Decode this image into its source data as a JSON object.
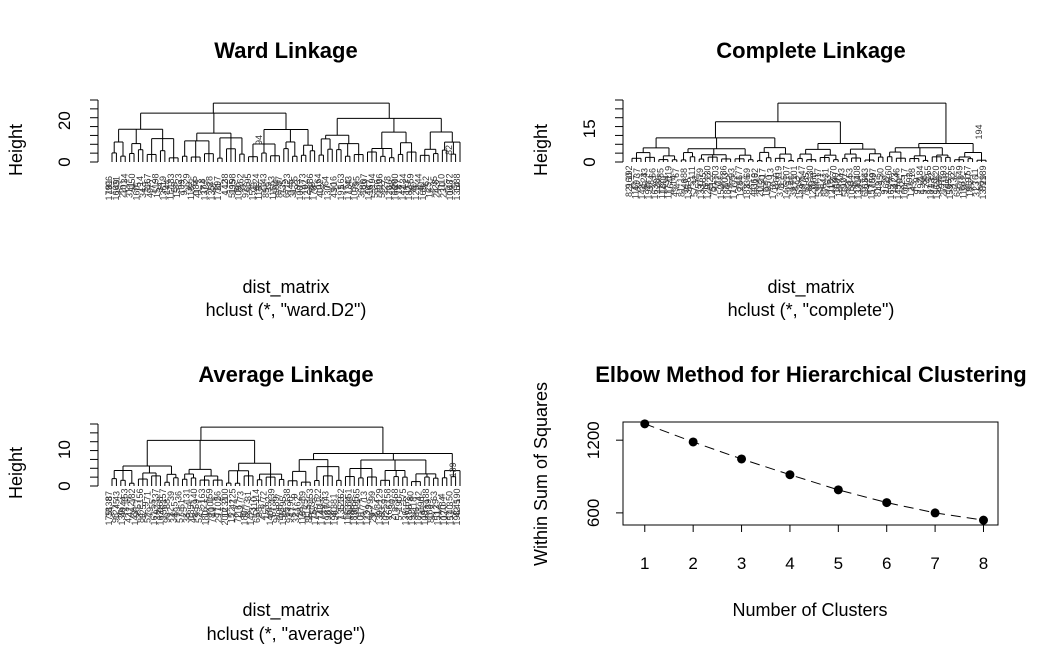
{
  "chart_data": [
    {
      "type": "dendrogram",
      "title": "Ward Linkage",
      "ylabel": "Height",
      "xlabel": "dist_matrix",
      "sublabel": "hclust (*, \"ward.D2\")",
      "y_ticks": [
        0,
        20
      ],
      "ylim": [
        0,
        30
      ],
      "leaf_labels_visible": [
        "94",
        "82"
      ]
    },
    {
      "type": "dendrogram",
      "title": "Complete Linkage",
      "ylabel": "Height",
      "xlabel": "dist_matrix",
      "sublabel": "hclust (*, \"complete\")",
      "y_ticks": [
        0,
        15
      ],
      "ylim": [
        0,
        28
      ],
      "leaf_labels_visible": [
        "194"
      ]
    },
    {
      "type": "dendrogram",
      "title": "Average Linkage",
      "ylabel": "Height",
      "xlabel": "dist_matrix",
      "sublabel": "hclust (*, \"average\")",
      "y_ticks": [
        0,
        10
      ],
      "ylim": [
        0,
        17
      ],
      "leaf_labels_visible": [
        "139"
      ]
    },
    {
      "type": "line",
      "title": "Elbow Method for Hierarchical Clustering",
      "xlabel": "Number of Clusters",
      "ylabel": "Within Sum of Squares",
      "x": [
        1,
        2,
        3,
        4,
        5,
        6,
        7,
        8
      ],
      "y": [
        1335,
        1185,
        1045,
        915,
        790,
        685,
        600,
        540
      ],
      "x_ticks": [
        1,
        2,
        3,
        4,
        5,
        6,
        7,
        8
      ],
      "y_ticks": [
        600,
        1200
      ],
      "xlim": [
        0.55,
        8.3
      ],
      "ylim": [
        500,
        1350
      ],
      "line_style": "dashed",
      "marker": "filled-circle"
    }
  ]
}
